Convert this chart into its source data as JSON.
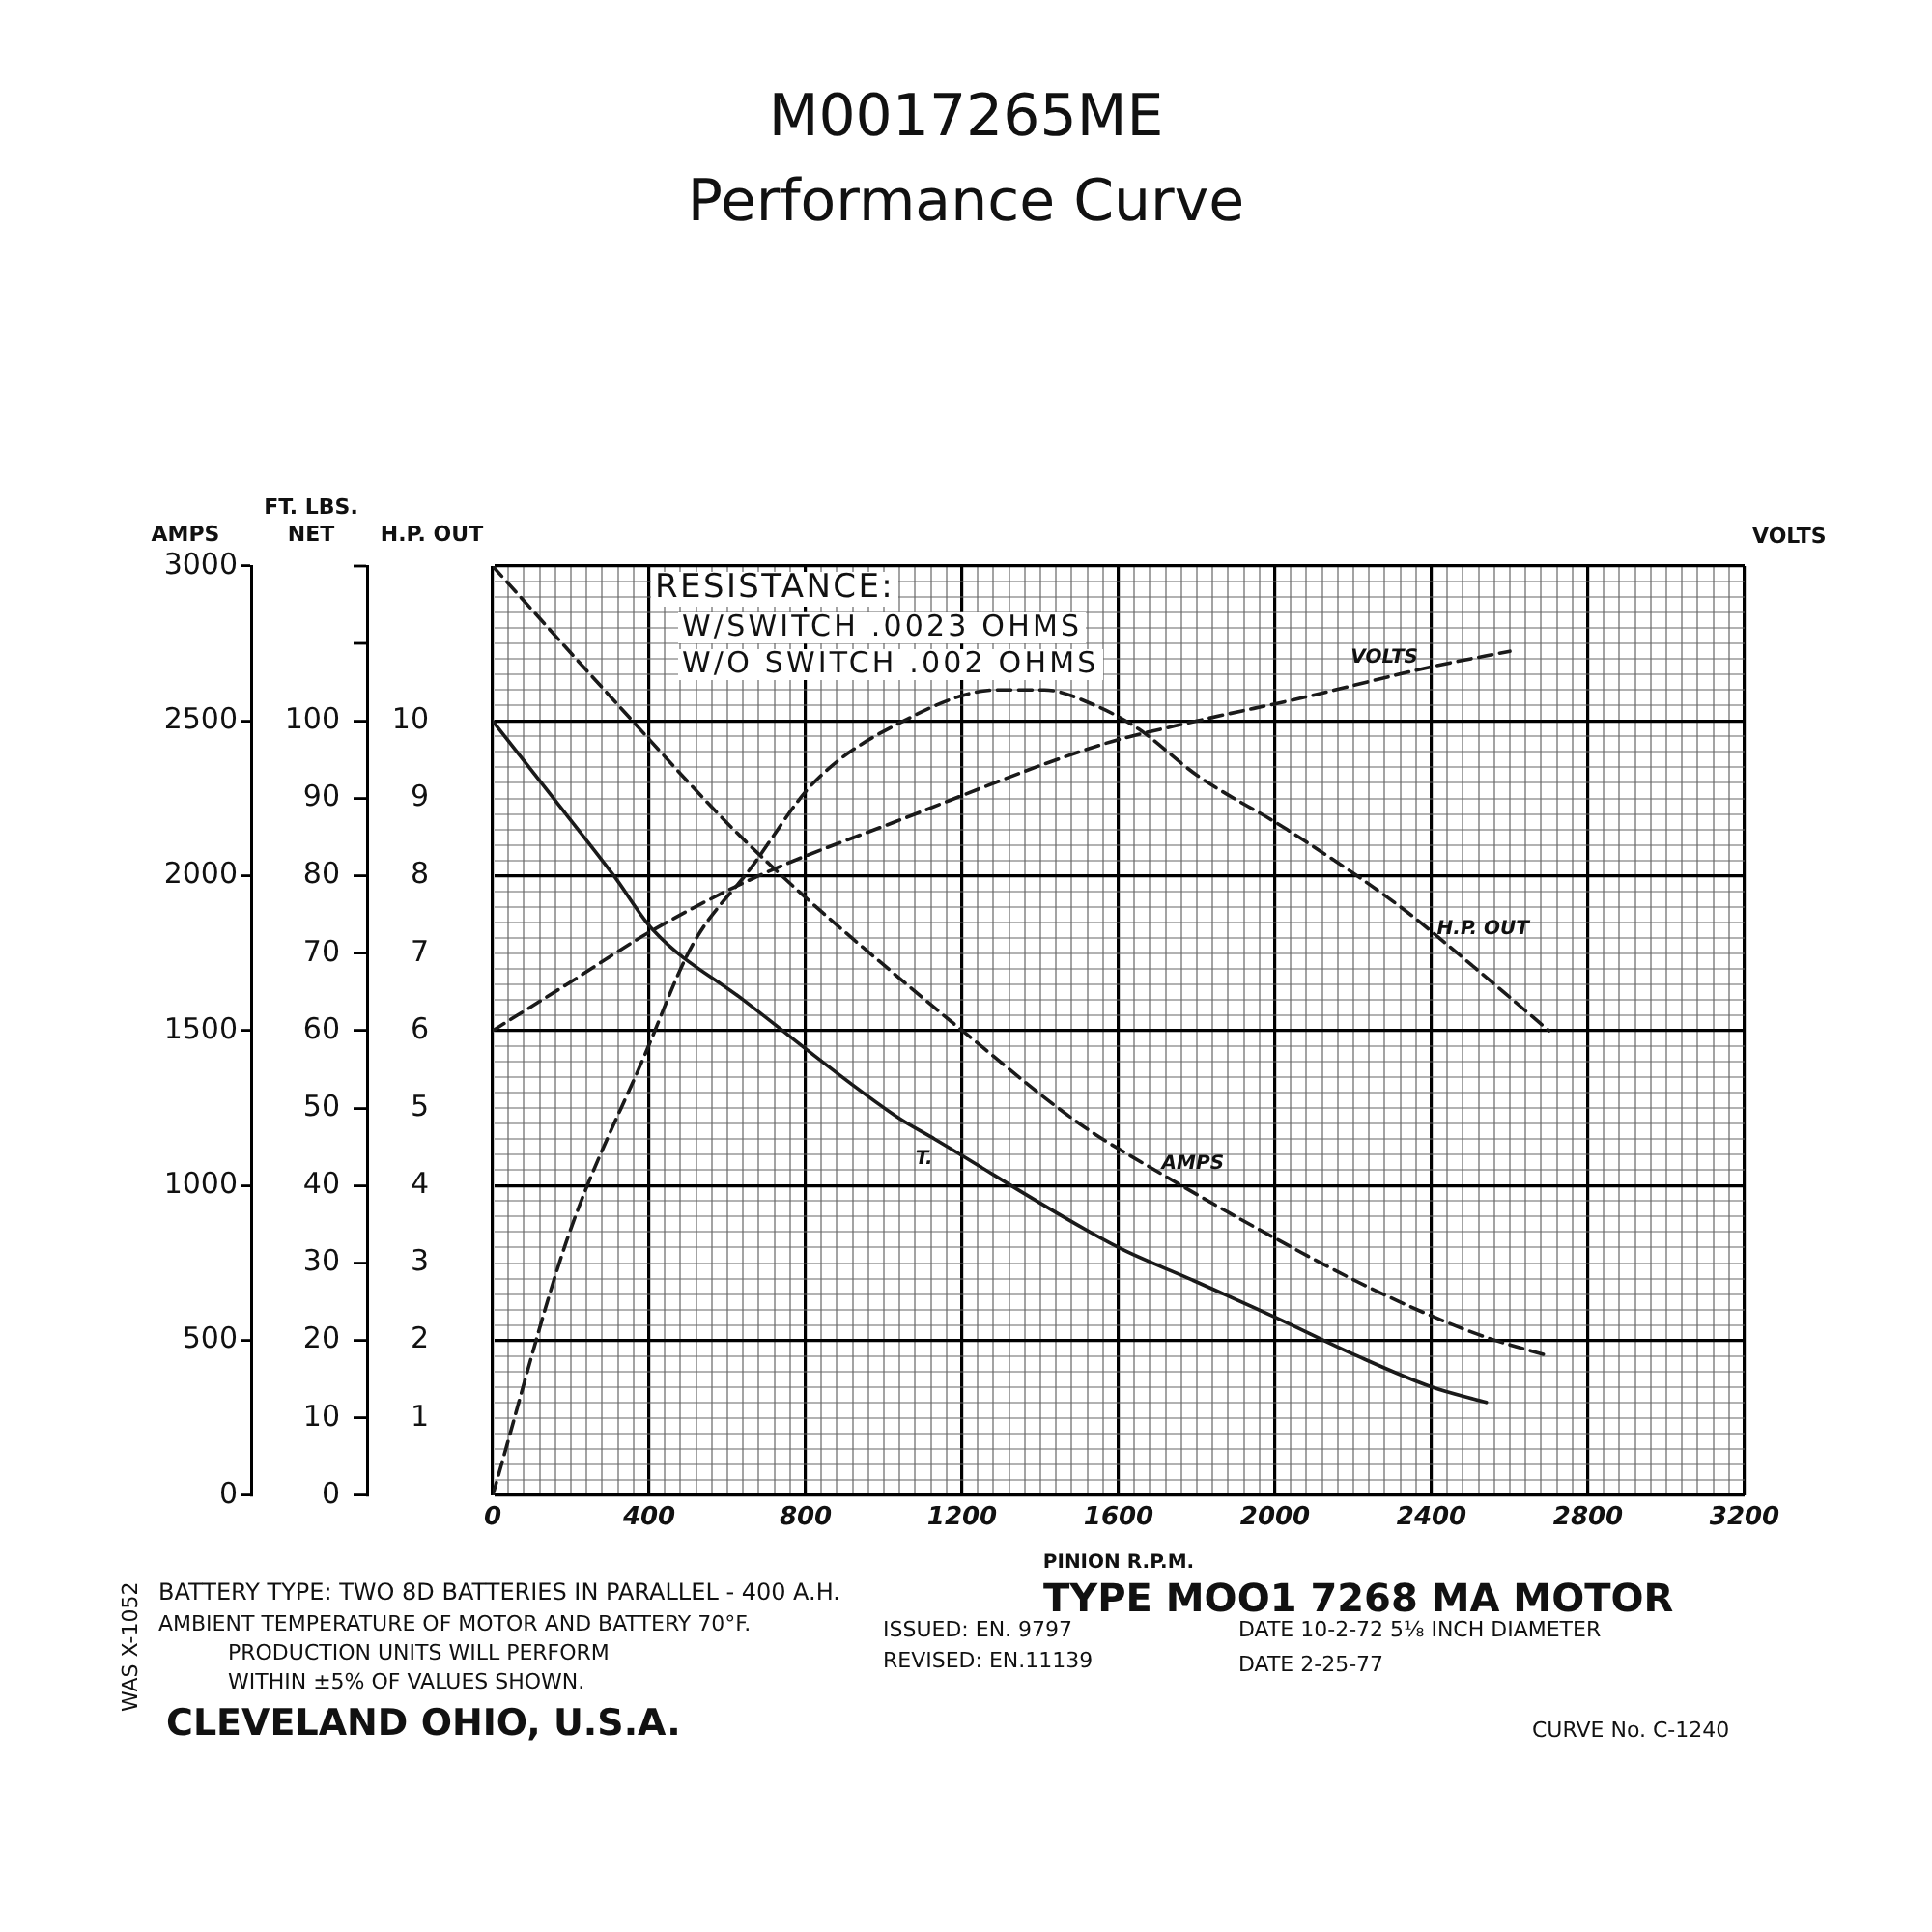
{
  "chart_data": {
    "type": "line",
    "title": "M0017265ME",
    "subtitle": "Performance Curve",
    "xlabel": "PINION R.P.M.",
    "ylabel": "AMPS",
    "y2label": "FT. LBS. NET",
    "y3label": "H.P. OUT",
    "annotations": [
      "RESISTANCE:",
      "W/SWITCH .0023 OHMS",
      "W/O SWITCH .002 OHMS",
      "BATTERY TYPE: TWO 8D BATTERIES IN PARALLEL - 400 A.H.",
      "AMBIENT TEMPERATURE OF MOTOR AND BATTERY 70°F.",
      "PRODUCTION UNITS WILL PERFORM",
      "WITHIN ±5% OF VALUES SHOWN.",
      "ISSUED: EN. 9797",
      "REVISED: EN.11139",
      "TYPE MOO1 7268 MA MOTOR",
      "DATE 10-2-72 5⅛ INCH DIAMETER",
      "DATE 2-25-77",
      "CLEVELAND OHIO, U.S.A.",
      "CURVE No. C-1240",
      "WAS X-1052",
      "VOLTS"
    ],
    "xlim": [
      0,
      3200
    ],
    "xticks": [
      0,
      {
        "value": 40,
        "label": null
      },
      {
        "value": 80,
        "label": null
      },
      {
        "value": 120,
        "label": null
      },
      {
        "value": 160,
        "label": null
      },
      {
        "value": 200,
        "label": null
      },
      {
        "value": 240,
        "label": null
      },
      {
        "value": 280,
        "label": null
      },
      {
        "value": 320,
        "label": null
      },
      {
        "value": 360,
        "label": null
      },
      400,
      {
        "value": 440,
        "label": null
      },
      {
        "value": 480,
        "label": null
      },
      {
        "value": 520,
        "label": null
      },
      {
        "value": 560,
        "label": null
      },
      {
        "value": 600,
        "label": null
      },
      {
        "value": 640,
        "label": null
      },
      {
        "value": 680,
        "label": null
      },
      {
        "value": 720,
        "label": null
      },
      {
        "value": 760,
        "label": null
      },
      800,
      {
        "value": 840,
        "label": null
      },
      {
        "value": 880,
        "label": null
      },
      {
        "value": 920,
        "label": null
      },
      {
        "value": 960,
        "label": null
      },
      {
        "value": 1000,
        "label": null
      },
      {
        "value": 1040,
        "label": null
      },
      {
        "value": 1080,
        "label": null
      },
      {
        "value": 1120,
        "label": null
      },
      {
        "value": 1160,
        "label": null
      },
      1200,
      {
        "value": 1240,
        "label": null
      },
      {
        "value": 1280,
        "label": null
      },
      {
        "value": 1320,
        "label": null
      },
      {
        "value": 1360,
        "label": null
      },
      {
        "value": 1400,
        "label": null
      },
      {
        "value": 1440,
        "label": null
      },
      {
        "value": 1480,
        "label": null
      },
      {
        "value": 1520,
        "label": null
      },
      {
        "value": 1560,
        "label": null
      },
      1600,
      {
        "value": 1640,
        "label": null
      },
      {
        "value": 1680,
        "label": null
      },
      {
        "value": 1720,
        "label": null
      },
      {
        "value": 1760,
        "label": null
      },
      {
        "value": 1800,
        "label": null
      },
      {
        "value": 1840,
        "label": null
      },
      {
        "value": 1880,
        "label": null
      },
      {
        "value": 1920,
        "label": null
      },
      {
        "value": 1960,
        "label": null
      },
      2000,
      {
        "value": 2040,
        "label": null
      },
      {
        "value": 2080,
        "label": null
      },
      {
        "value": 2120,
        "label": null
      },
      {
        "value": 2160,
        "label": null
      },
      {
        "value": 2200,
        "label": null
      },
      {
        "value": 2240,
        "label": null
      },
      {
        "value": 2280,
        "label": null
      },
      {
        "value": 2320,
        "label": null
      },
      {
        "value": 2360,
        "label": null
      },
      2400,
      {
        "value": 2440,
        "label": null
      },
      {
        "value": 2480,
        "label": null
      },
      {
        "value": 2520,
        "label": null
      },
      {
        "value": 2560,
        "label": null
      },
      {
        "value": 2600,
        "label": null
      },
      {
        "value": 2640,
        "label": null
      },
      {
        "value": 2680,
        "label": null
      },
      {
        "value": 2720,
        "label": null
      },
      {
        "value": 2760,
        "label": null
      },
      2800,
      {
        "value": 2840,
        "label": null
      },
      {
        "value": 2880,
        "label": null
      },
      {
        "value": 2920,
        "label": null
      },
      {
        "value": 2960,
        "label": null
      },
      {
        "value": 3000,
        "label": null
      },
      {
        "value": 3040,
        "label": null
      },
      {
        "value": 3080,
        "label": null
      },
      {
        "value": 3120,
        "label": null
      },
      {
        "value": 3160,
        "label": null
      },
      3200
    ],
    "ylim": [
      0,
      3000
    ],
    "yticks": [
      0,
      {
        "value": 50,
        "label": null
      },
      {
        "value": 100,
        "label": null
      },
      {
        "value": 150,
        "label": null
      },
      {
        "value": 200,
        "label": null
      },
      {
        "value": 250,
        "label": null
      },
      {
        "value": 300,
        "label": null
      },
      {
        "value": 350,
        "label": null
      },
      {
        "value": 400,
        "label": null
      },
      {
        "value": 450,
        "label": null
      },
      500,
      {
        "value": 550,
        "label": null
      },
      {
        "value": 600,
        "label": null
      },
      {
        "value": 650,
        "label": null
      },
      {
        "value": 700,
        "label": null
      },
      {
        "value": 750,
        "label": null
      },
      {
        "value": 800,
        "label": null
      },
      {
        "value": 850,
        "label": null
      },
      {
        "value": 900,
        "label": null
      },
      {
        "value": 950,
        "label": null
      },
      1000,
      {
        "value": 1050,
        "label": null
      },
      {
        "value": 1100,
        "label": null
      },
      {
        "value": 1150,
        "label": null
      },
      {
        "value": 1200,
        "label": null
      },
      {
        "value": 1250,
        "label": null
      },
      {
        "value": 1300,
        "label": null
      },
      {
        "value": 1350,
        "label": null
      },
      {
        "value": 1400,
        "label": null
      },
      {
        "value": 1450,
        "label": null
      },
      1500,
      {
        "value": 1550,
        "label": null
      },
      {
        "value": 1600,
        "label": null
      },
      {
        "value": 1650,
        "label": null
      },
      {
        "value": 1700,
        "label": null
      },
      {
        "value": 1750,
        "label": null
      },
      {
        "value": 1800,
        "label": null
      },
      {
        "value": 1850,
        "label": null
      },
      {
        "value": 1900,
        "label": null
      },
      {
        "value": 1950,
        "label": null
      },
      2000,
      {
        "value": 2050,
        "label": null
      },
      {
        "value": 2100,
        "label": null
      },
      {
        "value": 2150,
        "label": null
      },
      {
        "value": 2200,
        "label": null
      },
      {
        "value": 2250,
        "label": null
      },
      {
        "value": 2300,
        "label": null
      },
      {
        "value": 2350,
        "label": null
      },
      {
        "value": 2400,
        "label": null
      },
      {
        "value": 2450,
        "label": null
      },
      2500,
      {
        "value": 2550,
        "label": null
      },
      {
        "value": 2600,
        "label": null
      },
      {
        "value": 2650,
        "label": null
      },
      {
        "value": 2700,
        "label": null
      },
      {
        "value": 2750,
        "label": null
      },
      {
        "value": 2800,
        "label": null
      },
      {
        "value": 2850,
        "label": null
      },
      {
        "value": 2900,
        "label": null
      },
      {
        "value": 2950,
        "label": null
      },
      3000
    ],
    "y2lim": [
      0,
      120
    ],
    "y2ticks": [
      0,
      10,
      20,
      30,
      40,
      50,
      60,
      70,
      80,
      90,
      100,
      {
        "value": 110,
        "label": null
      },
      {
        "value": 120,
        "label": null
      }
    ],
    "y3lim": [
      0,
      12
    ],
    "y3ticks": [
      1,
      2,
      3,
      4,
      5,
      6,
      7,
      8,
      9,
      10
    ],
    "grid": true,
    "marker": "none",
    "line_style": "dashed",
    "series": [
      {
        "name": "AMPS",
        "color": "#1a1a1a",
        "x": [
          0,
          300,
          600,
          800,
          1030,
          1220,
          1500,
          1720,
          2000,
          2210,
          2380,
          2540,
          2700
        ],
        "values": [
          3000,
          2580,
          2170,
          1930,
          1680,
          1480,
          1200,
          1030,
          830,
          690,
          590,
          510,
          450
        ]
      },
      {
        "name": "T.",
        "color": "#1a1a1a",
        "axis": "y2",
        "line_style": "solid",
        "x": [
          0,
          140,
          310,
          410,
          640,
          1030,
          1130,
          1600,
          1780,
          2000,
          2210,
          2400,
          2540
        ],
        "values": [
          100,
          91,
          80,
          73,
          64,
          49,
          46,
          32,
          28,
          23,
          18,
          14,
          12
        ]
      },
      {
        "name": "H.P. OUT",
        "color": "#1a1a1a",
        "axis": "y3",
        "x": [
          0,
          190,
          390,
          510,
          660,
          820,
          1050,
          1290,
          1410,
          1540,
          1650,
          1800,
          2030,
          2320,
          2490,
          2700
        ],
        "values": [
          0,
          3.3,
          5.7,
          7.1,
          8.1,
          9.2,
          10.0,
          10.4,
          10.4,
          10.2,
          9.9,
          9.3,
          8.6,
          7.6,
          6.9,
          6.0
        ]
      },
      {
        "name": "VOLTS",
        "color": "#1a1a1a",
        "axis": "y3",
        "x": [
          0,
          190,
          410,
          680,
          1030,
          1560,
          1800,
          2070,
          2400,
          2600
        ],
        "values": [
          6.0,
          6.6,
          7.3,
          8.0,
          8.7,
          9.7,
          10.0,
          10.3,
          10.7,
          10.9
        ]
      }
    ]
  }
}
